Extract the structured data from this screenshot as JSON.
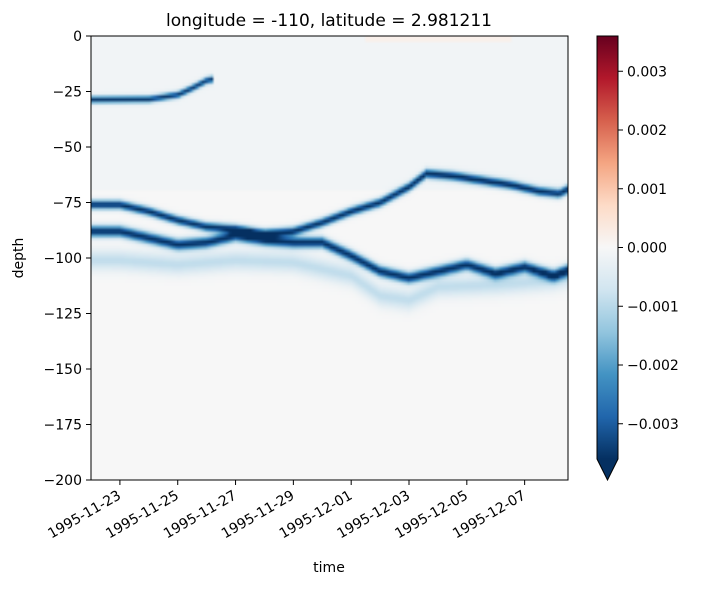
{
  "chart_data": {
    "type": "heatmap",
    "title": "longitude = -110, latitude = 2.981211",
    "xlabel": "time",
    "ylabel": "depth",
    "x_range": [
      "1995-11-22",
      "1995-12-08T12:00"
    ],
    "xticks": [
      "1995-11-23",
      "1995-11-25",
      "1995-11-27",
      "1995-11-29",
      "1995-12-01",
      "1995-12-03",
      "1995-12-05",
      "1995-12-07"
    ],
    "ylim": [
      -200,
      0
    ],
    "yticks": [
      "0",
      "−25",
      "−50",
      "−75",
      "−100",
      "−125",
      "−150",
      "−175",
      "−200"
    ],
    "colormap": "RdBu_r",
    "colorbar": {
      "range": [
        -0.0036,
        0.0036
      ],
      "ticks": [
        "0.003",
        "0.002",
        "0.001",
        "0.000",
        "−0.001",
        "−0.002",
        "−0.003"
      ],
      "extend": "min"
    },
    "grid": false,
    "features": [
      {
        "kind": "thin-negative-band",
        "depth_top": [
          [
            -28,
            -29.5
          ],
          [
            1.0,
            -27
          ],
          [
            2.0,
            -25
          ],
          [
            2.5,
            -22
          ],
          [
            3.0,
            -18.5
          ],
          [
            3.2,
            -18
          ]
        ],
        "thickness_m": 3,
        "value": -0.0034
      },
      {
        "kind": "negative-band",
        "depth_center": [
          [
            -28,
            -75
          ],
          [
            0,
            -76
          ],
          [
            1.0,
            -79
          ],
          [
            2.0,
            -83
          ],
          [
            3.0,
            -86
          ],
          [
            4.0,
            -87
          ],
          [
            5.0,
            -89
          ],
          [
            6.0,
            -88
          ],
          [
            7.0,
            -84
          ],
          [
            8.0,
            -79
          ],
          [
            9.0,
            -75
          ],
          [
            10.0,
            -68
          ],
          [
            10.6,
            -62
          ],
          [
            11.5,
            -63
          ],
          [
            12.5,
            -65
          ],
          [
            13.5,
            -67
          ],
          [
            14.5,
            -70
          ],
          [
            15.2,
            -71
          ],
          [
            15.8,
            -67
          ],
          [
            16.5,
            -65
          ],
          [
            17.0,
            -65
          ]
        ],
        "thickness_m": 4,
        "value": -0.0036
      },
      {
        "kind": "negative-band",
        "depth_center": [
          [
            -28,
            -87
          ],
          [
            0,
            -88
          ],
          [
            1.0,
            -91
          ],
          [
            2.0,
            -94
          ],
          [
            3.0,
            -93
          ],
          [
            4.0,
            -90
          ],
          [
            5.0,
            -92
          ],
          [
            6.0,
            -93
          ],
          [
            7.0,
            -93
          ],
          [
            8.0,
            -99
          ],
          [
            9.0,
            -106
          ],
          [
            10.0,
            -109
          ],
          [
            11.0,
            -106
          ],
          [
            12.0,
            -103
          ],
          [
            13.0,
            -107
          ],
          [
            14.0,
            -104
          ],
          [
            15.0,
            -108
          ],
          [
            16.0,
            -103
          ],
          [
            17.0,
            -100
          ]
        ],
        "thickness_m": 5,
        "value": -0.0036
      },
      {
        "kind": "faint-negative-band",
        "depth_center": [
          [
            -28,
            -99
          ],
          [
            0,
            -101
          ],
          [
            2.0,
            -103
          ],
          [
            4.0,
            -101
          ],
          [
            6.0,
            -102
          ],
          [
            8.0,
            -108
          ],
          [
            9.0,
            -117
          ],
          [
            10.0,
            -119
          ],
          [
            11.0,
            -113
          ],
          [
            13.0,
            -112
          ],
          [
            15.0,
            -110
          ],
          [
            17.0,
            -104
          ]
        ],
        "thickness_m": 9,
        "value": -0.0009
      },
      {
        "kind": "faint-positive-patch",
        "time_range": [
          8.5,
          13.5
        ],
        "depth_range": [
          -2,
          0
        ],
        "value": 0.0003
      }
    ]
  }
}
